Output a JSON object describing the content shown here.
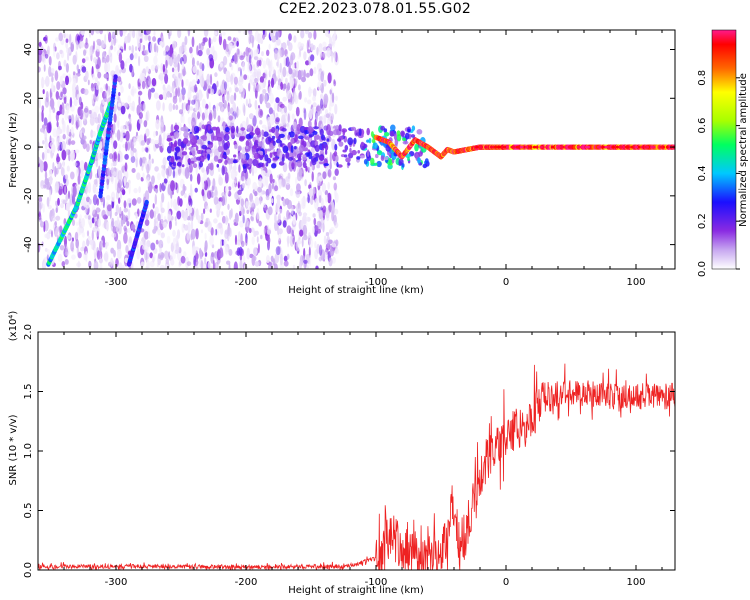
{
  "title": "C2E2.2023.078.01.55.G02",
  "chart_data": [
    {
      "type": "heatmap",
      "xlabel": "Height of straight line (km)",
      "ylabel": "Frequency (Hz)",
      "xlim": [
        -360,
        130
      ],
      "ylim": [
        -50,
        48
      ],
      "x_ticks": [
        -300,
        -200,
        -100,
        0,
        100
      ],
      "y_ticks": [
        -40,
        -20,
        0,
        20,
        40
      ],
      "colorbar": {
        "label": "Normalized spectral amplitude",
        "range": [
          0,
          1
        ],
        "ticks": [
          0.0,
          0.2,
          0.4,
          0.6,
          0.8
        ],
        "colors": [
          "#ffffff",
          "#c7a7f0",
          "#8a2be2",
          "#1b0fff",
          "#00c8ff",
          "#00ff60",
          "#a8ff00",
          "#ffff00",
          "#ff6600",
          "#ff0000",
          "#ff1a8c"
        ]
      },
      "ridges": [
        {
          "x": [
            -352,
            -330,
            -320,
            -312,
            -304
          ],
          "y": [
            -48,
            -24,
            -8,
            6,
            18
          ],
          "level": 0.45
        },
        {
          "x": [
            -312,
            -300
          ],
          "y": [
            -20,
            30
          ],
          "level": 0.3
        },
        {
          "x": [
            -290,
            -276
          ],
          "y": [
            -48,
            -22
          ],
          "level": 0.3
        },
        {
          "x": [
            -100,
            -90,
            -80,
            -70,
            -60,
            -55,
            -50,
            -45,
            -40,
            -30,
            -20,
            -10,
            0,
            40,
            80,
            100,
            130
          ],
          "y": [
            4,
            2,
            -4,
            3,
            0,
            -2,
            -4,
            -1,
            -2,
            -1,
            0,
            0,
            0,
            0,
            0,
            0,
            0
          ],
          "level": 0.9
        }
      ]
    },
    {
      "type": "line",
      "xlabel": "Height of straight line (km)",
      "ylabel": "SNR (10 * v/v)",
      "y_multiplier": "(x10⁴)",
      "xlim": [
        -360,
        130
      ],
      "ylim": [
        0,
        20000
      ],
      "x_ticks": [
        -300,
        -200,
        -100,
        0,
        100
      ],
      "y_ticks": [
        0,
        5000,
        10000,
        15000,
        20000
      ],
      "y_tick_labels": [
        "0.0",
        "0.5",
        "1.0",
        "1.5",
        "2.0"
      ],
      "series": [
        {
          "color": "#ee2222",
          "x": [
            -360,
            -300,
            -200,
            -130,
            -115,
            -105,
            -100,
            -95,
            -92,
            -88,
            -85,
            -80,
            -75,
            -70,
            -62,
            -58,
            -50,
            -45,
            -42,
            -38,
            -35,
            -30,
            -25,
            -20,
            -15,
            -10,
            -5,
            0,
            10,
            20,
            30,
            40,
            50,
            70,
            90,
            110,
            130
          ],
          "y": [
            300,
            300,
            250,
            300,
            500,
            800,
            1000,
            1400,
            2400,
            3000,
            2800,
            2000,
            1700,
            1700,
            1200,
            1100,
            1500,
            2800,
            5500,
            4200,
            1000,
            3000,
            6000,
            8000,
            9000,
            10000,
            10500,
            11500,
            12000,
            13000,
            14200,
            14800,
            15000,
            14800,
            14500,
            14600,
            14600
          ]
        }
      ]
    }
  ]
}
